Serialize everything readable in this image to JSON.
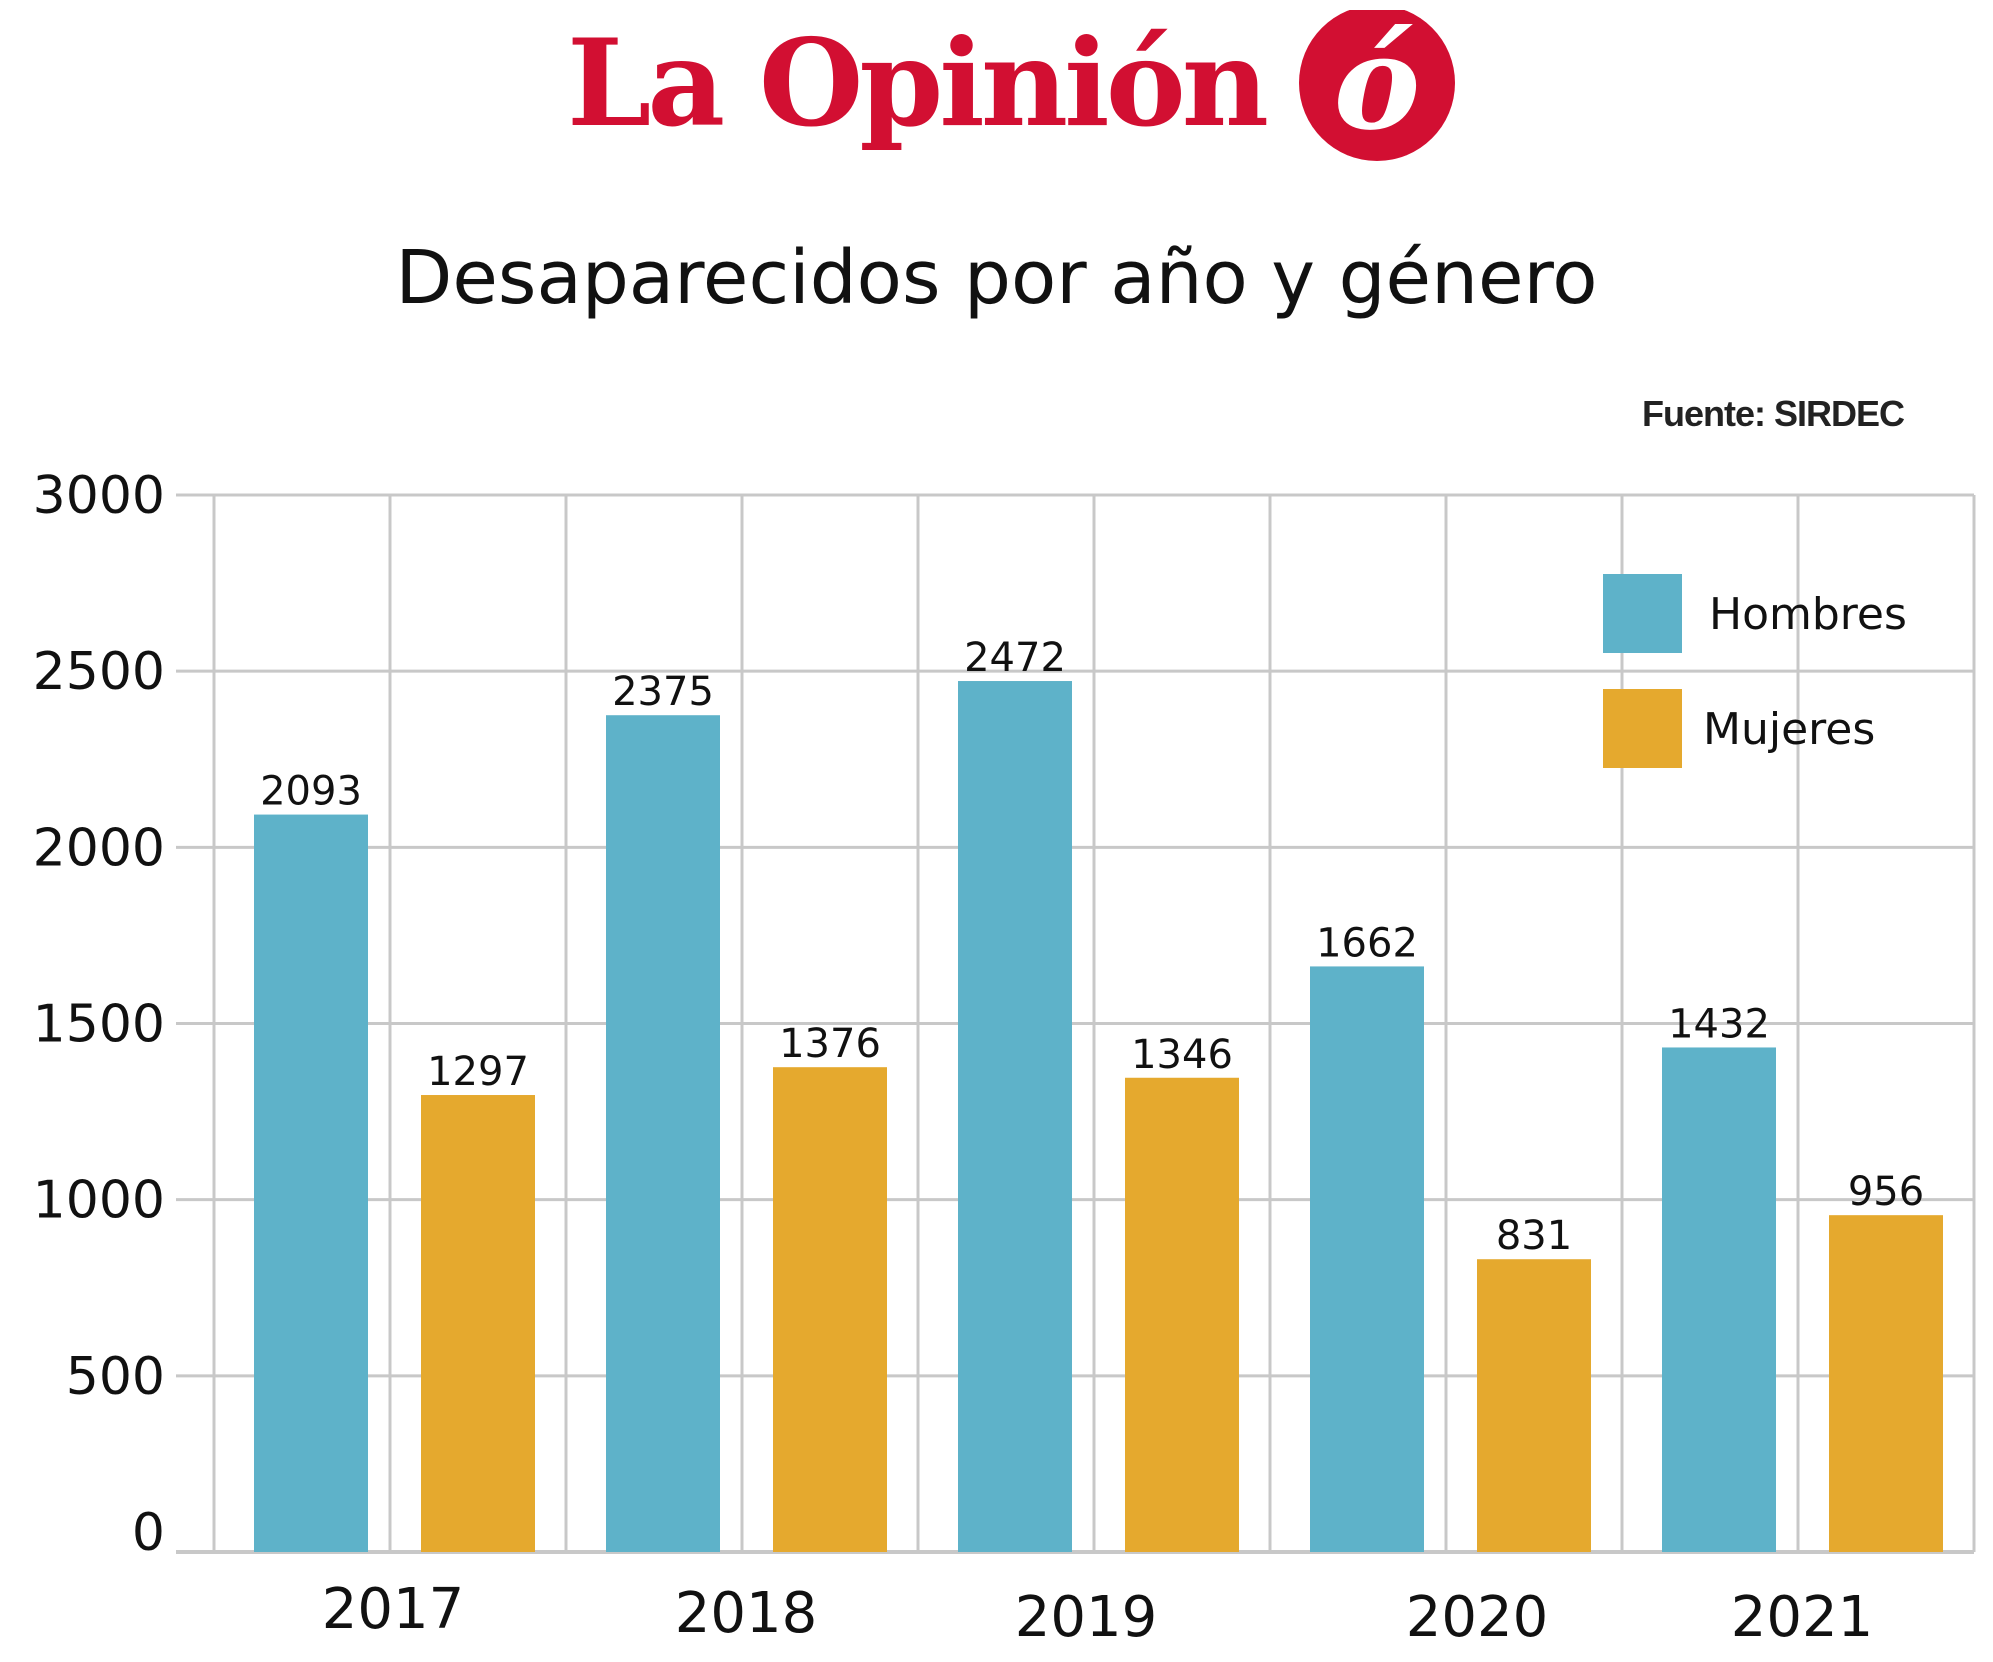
{
  "brand": {
    "name": "La Opinión",
    "mark": "ó",
    "color": "#d20f32"
  },
  "source": "Fuente: SIRDEC",
  "chart_data": {
    "type": "bar",
    "title": "Desaparecidos por año y género",
    "categories": [
      "2017",
      "2018",
      "2019",
      "2020",
      "2021"
    ],
    "series": [
      {
        "name": "Hombres",
        "color": "#5eb2c9",
        "values": [
          2093,
          2375,
          2472,
          1662,
          1432
        ]
      },
      {
        "name": "Mujeres",
        "color": "#e5a92e",
        "values": [
          1297,
          1376,
          1346,
          831,
          956
        ]
      }
    ],
    "yticks": [
      0,
      500,
      1000,
      1500,
      2000,
      2500,
      3000
    ],
    "ylim": [
      0,
      3000
    ],
    "grid": true,
    "legend": "top-right",
    "xlabel": "",
    "ylabel": ""
  }
}
